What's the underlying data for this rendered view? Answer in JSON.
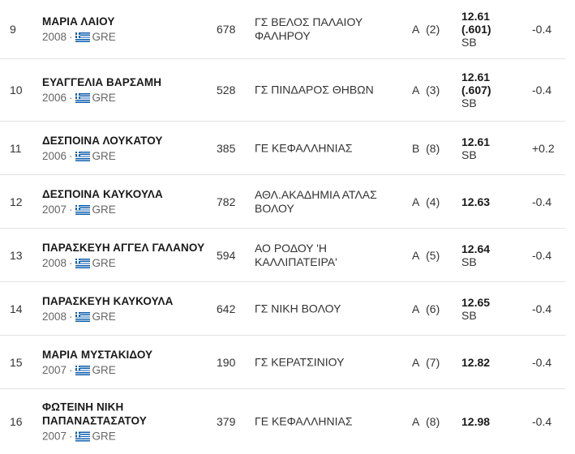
{
  "results": [
    {
      "rank": "9",
      "name": "ΜΑΡΙΑ ΛΑΙΟΥ",
      "name2": "",
      "year": "2008",
      "country": "GRE",
      "bib": "678",
      "club": "ΓΣ ΒΕΛΟΣ ΠΑΛΑΙΟΥ ΦΑΛΗΡΟΥ",
      "heat": "A",
      "place": "(2)",
      "mark": "12.61",
      "mark_detail": "(.601)",
      "note": "SB",
      "wind": "-0.4"
    },
    {
      "rank": "10",
      "name": "ΕΥΑΓΓΕΛΙΑ ΒΑΡΣΑΜΗ",
      "name2": "",
      "year": "2006",
      "country": "GRE",
      "bib": "528",
      "club": "ΓΣ ΠΙΝΔΑΡΟΣ ΘΗΒΩΝ",
      "heat": "A",
      "place": "(3)",
      "mark": "12.61",
      "mark_detail": "(.607)",
      "note": "SB",
      "wind": "-0.4"
    },
    {
      "rank": "11",
      "name": "ΔΕΣΠΟΙΝΑ ΛΟΥΚΑΤΟΥ",
      "name2": "",
      "year": "2006",
      "country": "GRE",
      "bib": "385",
      "club": "ΓΕ ΚΕΦΑΛΛΗΝΙΑΣ",
      "heat": "B",
      "place": "(8)",
      "mark": "12.61",
      "mark_detail": "",
      "note": "SB",
      "wind": "+0.2"
    },
    {
      "rank": "12",
      "name": "ΔΕΣΠΟΙΝΑ ΚΑΥΚΟΥΛΑ",
      "name2": "",
      "year": "2007",
      "country": "GRE",
      "bib": "782",
      "club": "ΑΘΛ.ΑΚΑΔΗΜΙΑ ΑΤΛΑΣ ΒΟΛΟΥ",
      "heat": "A",
      "place": "(4)",
      "mark": "12.63",
      "mark_detail": "",
      "note": "",
      "wind": "-0.4"
    },
    {
      "rank": "13",
      "name": "ΠΑΡΑΣΚΕΥΗ ΑΓΓΕΛ ΓΑΛΑΝΟΥ",
      "name2": "",
      "year": "2008",
      "country": "GRE",
      "bib": "594",
      "club": "ΑΟ ΡΟΔΟΥ 'Η ΚΑΛΛΙΠΑΤΕΙΡΑ'",
      "heat": "A",
      "place": "(5)",
      "mark": "12.64",
      "mark_detail": "",
      "note": "SB",
      "wind": "-0.4"
    },
    {
      "rank": "14",
      "name": "ΠΑΡΑΣΚΕΥΗ ΚΑΥΚΟΥΛΑ",
      "name2": "",
      "year": "2008",
      "country": "GRE",
      "bib": "642",
      "club": "ΓΣ ΝΙΚΗ ΒΟΛΟΥ",
      "heat": "A",
      "place": "(6)",
      "mark": "12.65",
      "mark_detail": "",
      "note": "SB",
      "wind": "-0.4"
    },
    {
      "rank": "15",
      "name": "ΜΑΡΙΑ ΜΥΣΤΑΚΙΔΟΥ",
      "name2": "",
      "year": "2007",
      "country": "GRE",
      "bib": "190",
      "club": "ΓΣ ΚΕΡΑΤΣΙΝΙΟΥ",
      "heat": "A",
      "place": "(7)",
      "mark": "12.82",
      "mark_detail": "",
      "note": "",
      "wind": "-0.4"
    },
    {
      "rank": "16",
      "name": "ΦΩΤΕΙΝΗ ΝΙΚΗ",
      "name2": "ΠΑΠΑΝΑΣΤΑΣΑΤΟΥ",
      "year": "2007",
      "country": "GRE",
      "bib": "379",
      "club": "ΓΕ ΚΕΦΑΛΛΗΝΙΑΣ",
      "heat": "A",
      "place": "(8)",
      "mark": "12.98",
      "mark_detail": "",
      "note": "",
      "wind": "-0.4"
    }
  ]
}
